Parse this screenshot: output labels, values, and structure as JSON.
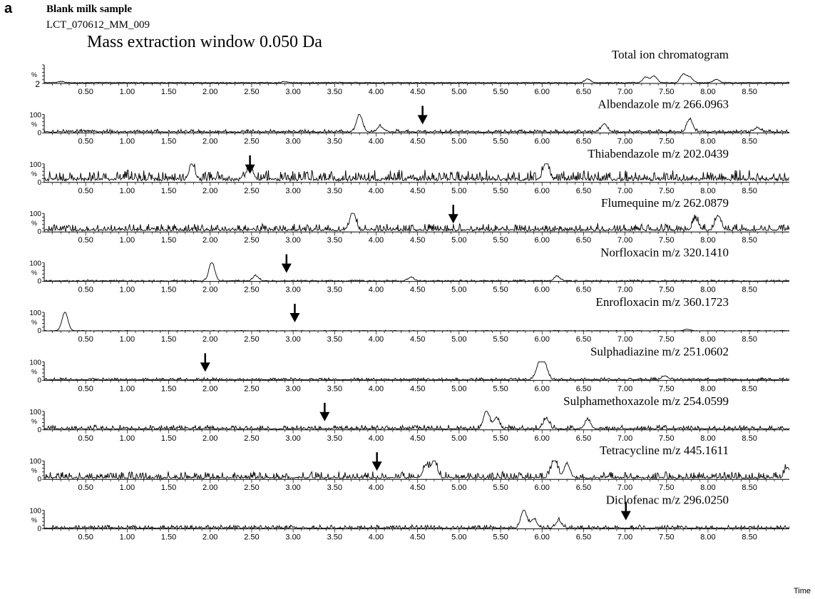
{
  "figure": {
    "panel_letter": "a",
    "sample_title": "Blank milk sample",
    "run_id": "LCT_070612_MM_009",
    "window_note": "Mass extraction window 0.050 Da",
    "x_unit_label": "Time"
  },
  "chart_data": [
    {
      "type": "line",
      "title": "Total ion chromatogram",
      "xlim": [
        0.0,
        8.98
      ],
      "x_ticks": [
        "0.50",
        "1.00",
        "1.50",
        "2.00",
        "2.50",
        "3.00",
        "3.50",
        "4.00",
        "4.50",
        "5.00",
        "5.50",
        "6.00",
        "6.50",
        "7.00",
        "7.50",
        "8.00",
        "8.50"
      ],
      "y_tick_labels": [
        "2"
      ],
      "ylabel": "%",
      "ylim": [
        0,
        100
      ],
      "baseline": 6,
      "noise": 2,
      "peaks": [
        [
          0.2,
          6
        ],
        [
          2.9,
          5
        ],
        [
          6.55,
          20
        ],
        [
          7.25,
          30
        ],
        [
          7.35,
          35
        ],
        [
          7.7,
          45
        ],
        [
          7.78,
          30
        ],
        [
          8.1,
          18
        ]
      ],
      "arrow_at": null
    },
    {
      "type": "line",
      "title": "Albendazole m/z 266.0963",
      "xlim": [
        0.0,
        8.98
      ],
      "x_ticks": [
        "0.50",
        "1.00",
        "1.50",
        "2.00",
        "2.50",
        "3.00",
        "3.50",
        "4.00",
        "4.50",
        "5.00",
        "5.50",
        "6.00",
        "6.50",
        "7.00",
        "7.50",
        "8.00",
        "8.50"
      ],
      "y_tick_labels": [
        "100",
        "0"
      ],
      "ylabel": "%",
      "ylim": [
        0,
        100
      ],
      "baseline": 8,
      "noise": 12,
      "peaks": [
        [
          3.8,
          95
        ],
        [
          4.05,
          30
        ],
        [
          6.75,
          45
        ],
        [
          7.78,
          70
        ],
        [
          8.6,
          22
        ]
      ],
      "arrow_at": 4.56
    },
    {
      "type": "line",
      "title": "Thiabendazole m/z 202.0439",
      "xlim": [
        0.0,
        8.98
      ],
      "x_ticks": [
        "0.50",
        "1.00",
        "1.50",
        "2.00",
        "2.50",
        "3.00",
        "3.50",
        "4.00",
        "4.50",
        "5.00",
        "5.50",
        "6.00",
        "6.50",
        "7.00",
        "7.50",
        "8.00",
        "8.50"
      ],
      "y_tick_labels": [
        "100",
        "0"
      ],
      "ylabel": "%",
      "ylim": [
        0,
        100
      ],
      "baseline": 25,
      "noise": 45,
      "peaks": [
        [
          1.78,
          85
        ],
        [
          2.48,
          70
        ],
        [
          6.05,
          95
        ]
      ],
      "arrow_at": 2.48
    },
    {
      "type": "line",
      "title": "Flumequine m/z 262.0879",
      "xlim": [
        0.0,
        8.98
      ],
      "x_ticks": [
        "0.50",
        "1.00",
        "1.50",
        "2.00",
        "2.50",
        "3.00",
        "3.50",
        "4.00",
        "4.50",
        "5.00",
        "5.50",
        "6.00",
        "6.50",
        "7.00",
        "7.50",
        "8.00",
        "8.50"
      ],
      "y_tick_labels": [
        "100",
        "0"
      ],
      "ylabel": "%",
      "ylim": [
        0,
        100
      ],
      "baseline": 15,
      "noise": 32,
      "peaks": [
        [
          3.72,
          100
        ],
        [
          7.85,
          55
        ],
        [
          8.12,
          80
        ]
      ],
      "arrow_at": 4.93
    },
    {
      "type": "line",
      "title": "Norfloxacin m/z 320.1410",
      "xlim": [
        0.0,
        8.98
      ],
      "x_ticks": [
        "0.50",
        "1.00",
        "1.50",
        "2.00",
        "2.50",
        "3.00",
        "3.50",
        "4.00",
        "4.50",
        "5.00",
        "5.50",
        "6.00",
        "6.50",
        "7.00",
        "7.50",
        "8.00",
        "8.50"
      ],
      "y_tick_labels": [
        "100",
        "0"
      ],
      "ylabel": "%",
      "ylim": [
        0,
        100
      ],
      "baseline": 3,
      "noise": 6,
      "peaks": [
        [
          2.02,
          100
        ],
        [
          2.55,
          28
        ],
        [
          4.42,
          20
        ],
        [
          6.18,
          25
        ]
      ],
      "arrow_at": 2.92
    },
    {
      "type": "line",
      "title": "Enrofloxacin m/z 360.1723",
      "xlim": [
        0.0,
        8.98
      ],
      "x_ticks": [
        "0.50",
        "1.00",
        "1.50",
        "2.00",
        "2.50",
        "3.00",
        "3.50",
        "4.00",
        "4.50",
        "5.00",
        "5.50",
        "6.00",
        "6.50",
        "7.00",
        "7.50",
        "8.00",
        "8.50"
      ],
      "y_tick_labels": [
        "100",
        "0"
      ],
      "ylabel": "%",
      "ylim": [
        0,
        100
      ],
      "baseline": 1,
      "noise": 2,
      "peaks": [
        [
          0.25,
          100
        ],
        [
          7.75,
          8
        ]
      ],
      "arrow_at": 3.02
    },
    {
      "type": "line",
      "title": "Sulphadiazine m/z 251.0602",
      "xlim": [
        0.0,
        8.98
      ],
      "x_ticks": [
        "0.50",
        "1.00",
        "1.50",
        "2.00",
        "2.50",
        "3.00",
        "3.50",
        "4.00",
        "4.50",
        "5.00",
        "5.50",
        "6.00",
        "6.50",
        "7.00",
        "7.50",
        "8.00",
        "8.50"
      ],
      "y_tick_labels": [
        "100",
        "0"
      ],
      "ylabel": "%",
      "ylim": [
        0,
        100
      ],
      "baseline": 5,
      "noise": 10,
      "peaks": [
        [
          5.95,
          50
        ],
        [
          6.0,
          95
        ],
        [
          6.05,
          40
        ],
        [
          7.48,
          22
        ]
      ],
      "arrow_at": 1.94
    },
    {
      "type": "line",
      "title": "Sulphamethoxazole m/z 254.0599",
      "xlim": [
        0.0,
        8.98
      ],
      "x_ticks": [
        "0.50",
        "1.00",
        "1.50",
        "2.00",
        "2.50",
        "3.00",
        "3.50",
        "4.00",
        "4.50",
        "5.00",
        "5.50",
        "6.00",
        "6.50",
        "7.00",
        "7.50",
        "8.00",
        "8.50"
      ],
      "y_tick_labels": [
        "100",
        "0"
      ],
      "ylabel": "%",
      "ylim": [
        0,
        100
      ],
      "baseline": 8,
      "noise": 20,
      "peaks": [
        [
          5.33,
          100
        ],
        [
          5.45,
          60
        ],
        [
          6.05,
          55
        ],
        [
          6.55,
          50
        ]
      ],
      "arrow_at": 3.38
    },
    {
      "type": "line",
      "title": "Tetracycline m/z 445.1611",
      "xlim": [
        0.0,
        8.98
      ],
      "x_ticks": [
        "0.50",
        "1.00",
        "1.50",
        "2.00",
        "2.50",
        "3.00",
        "3.50",
        "4.00",
        "4.50",
        "5.00",
        "5.50",
        "6.00",
        "6.50",
        "7.00",
        "7.50",
        "8.00",
        "8.50"
      ],
      "y_tick_labels": [
        "100",
        "0"
      ],
      "ylabel": "%",
      "ylim": [
        0,
        100
      ],
      "baseline": 12,
      "noise": 32,
      "peaks": [
        [
          4.6,
          70
        ],
        [
          4.7,
          95
        ],
        [
          6.15,
          100
        ],
        [
          6.3,
          80
        ],
        [
          8.96,
          55
        ]
      ],
      "arrow_at": 4.01
    },
    {
      "type": "line",
      "title": "Diclofenac m/z 296.0250",
      "xlim": [
        0.0,
        8.98
      ],
      "x_ticks": [
        "0.50",
        "1.00",
        "1.50",
        "2.00",
        "2.50",
        "3.00",
        "3.50",
        "4.00",
        "4.50",
        "5.00",
        "5.50",
        "6.00",
        "6.50",
        "7.00",
        "7.50",
        "8.00",
        "8.50"
      ],
      "y_tick_labels": [
        "100",
        "0"
      ],
      "ylabel": "%",
      "ylim": [
        0,
        100
      ],
      "baseline": 6,
      "noise": 16,
      "peaks": [
        [
          5.78,
          100
        ],
        [
          5.9,
          50
        ],
        [
          6.2,
          40
        ]
      ],
      "arrow_at": 7.01
    }
  ]
}
